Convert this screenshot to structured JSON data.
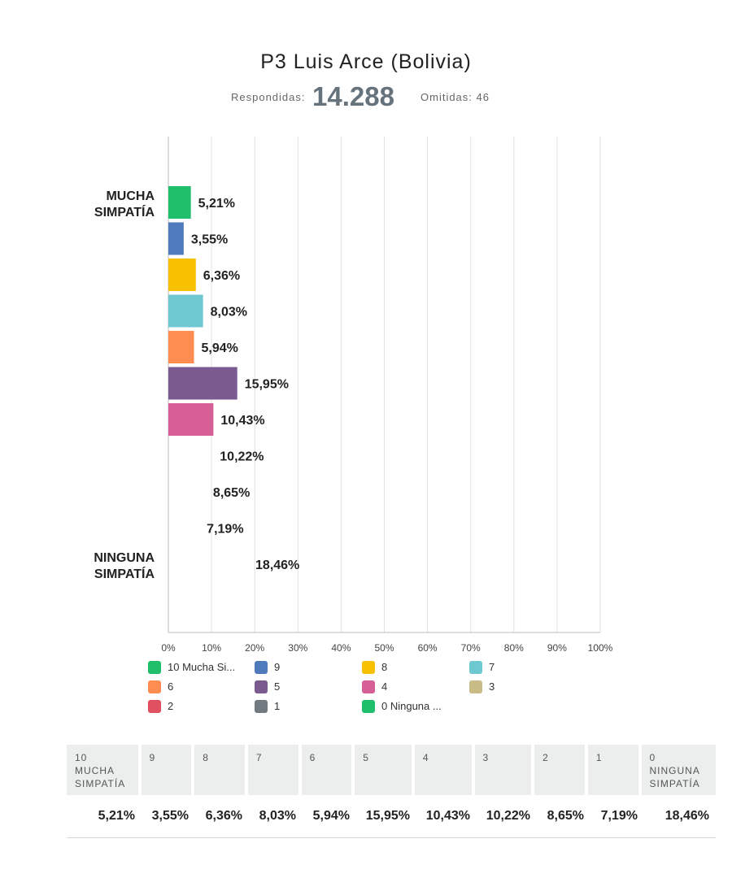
{
  "header": {
    "title": "P3 Luis Arce (Bolivia)",
    "answered_label": "Respondidas:",
    "answered_value": "14.288",
    "skipped_label": "Omitidas: 46"
  },
  "chart_data": {
    "type": "bar",
    "orientation": "horizontal",
    "categories": [
      "10 Mucha Simpatía",
      "9",
      "8",
      "7",
      "6",
      "5",
      "4",
      "3",
      "2",
      "1",
      "0 Ninguna Simpatía"
    ],
    "values": [
      5.21,
      3.55,
      6.36,
      8.03,
      5.94,
      15.95,
      10.43,
      10.22,
      8.65,
      7.19,
      18.46
    ],
    "value_labels": [
      "5,21%",
      "3,55%",
      "6,36%",
      "8,03%",
      "5,94%",
      "15,95%",
      "10,43%",
      "10,22%",
      "8,65%",
      "7,19%",
      "18,46%"
    ],
    "bars_drawn": [
      true,
      true,
      true,
      true,
      true,
      true,
      true,
      false,
      false,
      false,
      false
    ],
    "colors": [
      "#1fbf6b",
      "#4f7bbd",
      "#f7c000",
      "#6dc8d0",
      "#ff8c50",
      "#7b5a8f",
      "#d65f96",
      "#c8bb86",
      "#e05060",
      "#707a80",
      "#1fbf6b"
    ],
    "group_labels": [
      {
        "line1": "MUCHA",
        "line2": "SIMPATÍA"
      },
      {
        "line1": "NINGUNA",
        "line2": "SIMPATÍA"
      }
    ],
    "x_ticks": [
      "0%",
      "10%",
      "20%",
      "30%",
      "40%",
      "50%",
      "60%",
      "70%",
      "80%",
      "90%",
      "100%"
    ],
    "xlim": [
      0,
      100
    ],
    "grid": true
  },
  "legend": [
    {
      "label": "10 Mucha Si...",
      "color": "#1fbf6b"
    },
    {
      "label": "9",
      "color": "#4f7bbd"
    },
    {
      "label": "8",
      "color": "#f7c000"
    },
    {
      "label": "7",
      "color": "#6dc8d0"
    },
    {
      "label": "6",
      "color": "#ff8c50"
    },
    {
      "label": "5",
      "color": "#7b5a8f"
    },
    {
      "label": "4",
      "color": "#d65f96"
    },
    {
      "label": "3",
      "color": "#c8bb86"
    },
    {
      "label": "2",
      "color": "#e05060"
    },
    {
      "label": "1",
      "color": "#707a80"
    },
    {
      "label": "0 Ninguna ...",
      "color": "#1fbf6b"
    }
  ],
  "table": {
    "headers": [
      [
        "10",
        "MUCHA",
        "SIMPATÍA"
      ],
      [
        "9"
      ],
      [
        "8"
      ],
      [
        "7"
      ],
      [
        "6"
      ],
      [
        "5"
      ],
      [
        "4"
      ],
      [
        "3"
      ],
      [
        "2"
      ],
      [
        "1"
      ],
      [
        "0",
        "NINGUNA",
        "SIMPATÍA"
      ]
    ],
    "values": [
      "5,21%",
      "3,55%",
      "6,36%",
      "8,03%",
      "5,94%",
      "15,95%",
      "10,43%",
      "10,22%",
      "8,65%",
      "7,19%",
      "18,46%"
    ]
  }
}
